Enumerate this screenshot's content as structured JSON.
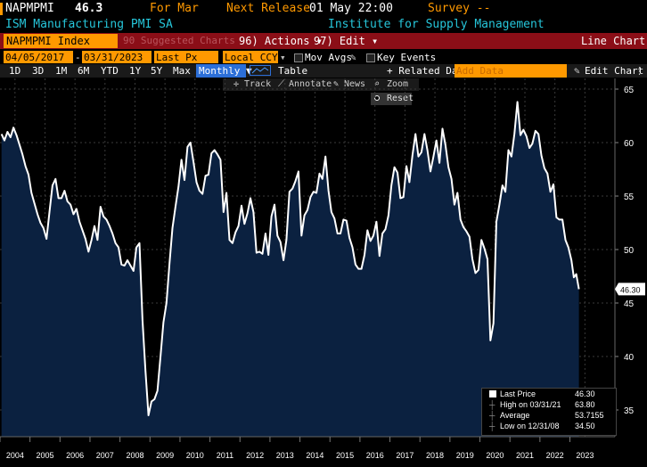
{
  "header": {
    "ticker": "NAPMPMI",
    "value": "46.3",
    "for_label": "For Mar",
    "next_release_label": "Next Release",
    "next_release_value": "01 May 22:00",
    "survey_label": "Survey --",
    "name": "ISM Manufacturing PMI SA",
    "source": "Institute for Supply Management"
  },
  "commandbar": {
    "security": "NAPMPMI Index",
    "suggested": "90 Suggested Charts",
    "actions": "96) Actions ▾",
    "edit": "97) Edit ▾",
    "title": "Line Chart"
  },
  "toolbar": {
    "start_date": "04/05/2017",
    "end_date": "03/31/2023",
    "field": "Last Px",
    "currency": "Local CCY",
    "mov_avgs": "Mov Avgs",
    "key_events": "Key Events"
  },
  "ranges": {
    "items": [
      "1D",
      "3D",
      "1M",
      "6M",
      "YTD",
      "1Y",
      "5Y",
      "Max"
    ],
    "frequency": "Monthly ▼",
    "table": "Table",
    "related": "+ Related Dat",
    "add_data_placeholder": "Add Data",
    "edit_chart": "Edit Chart"
  },
  "tools": {
    "track": "Track",
    "annotate": "Annotate",
    "news": "News",
    "zoom": "Zoom",
    "reset": "Reset"
  },
  "legend": {
    "rows": [
      {
        "label": "Last Price",
        "value": "46.30"
      },
      {
        "label": "High on 03/31/21",
        "value": "63.80"
      },
      {
        "label": "Average",
        "value": "53.7155"
      },
      {
        "label": "Low on 12/31/08",
        "value": "34.50"
      }
    ]
  },
  "last_value_tag": "46.30",
  "colors": {
    "line": "#ffffff",
    "fill": "#0b2140",
    "accent": "#ff9900",
    "bar": "#8b0e17",
    "cyan": "#26c6da"
  },
  "chart_data": {
    "type": "area",
    "x_start_year": 2004,
    "x_ticks": [
      "2004",
      "2005",
      "2006",
      "2007",
      "2008",
      "2009",
      "2010",
      "2011",
      "2012",
      "2013",
      "2014",
      "2015",
      "2016",
      "2017",
      "2018",
      "2019",
      "2020",
      "2021",
      "2022",
      "2023"
    ],
    "y_ticks": [
      35,
      40,
      45,
      50,
      55,
      60,
      65
    ],
    "ylim": [
      32.5,
      66.0
    ],
    "series": [
      {
        "points": [
          [
            2004.0,
            60.8
          ],
          [
            2004.1,
            60.2
          ],
          [
            2004.2,
            61.0
          ],
          [
            2004.3,
            60.5
          ],
          [
            2004.4,
            61.4
          ],
          [
            2004.5,
            60.7
          ],
          [
            2004.6,
            59.8
          ],
          [
            2004.7,
            58.9
          ],
          [
            2004.8,
            57.8
          ],
          [
            2004.9,
            57.0
          ],
          [
            2005.0,
            55.3
          ],
          [
            2005.2,
            53.3
          ],
          [
            2005.3,
            52.5
          ],
          [
            2005.4,
            52.0
          ],
          [
            2005.5,
            51.0
          ],
          [
            2005.6,
            53.5
          ],
          [
            2005.7,
            56.0
          ],
          [
            2005.8,
            56.6
          ],
          [
            2005.9,
            54.8
          ],
          [
            2006.0,
            54.8
          ],
          [
            2006.1,
            55.5
          ],
          [
            2006.2,
            54.5
          ],
          [
            2006.3,
            54.2
          ],
          [
            2006.4,
            53.3
          ],
          [
            2006.5,
            53.8
          ],
          [
            2006.6,
            52.6
          ],
          [
            2006.8,
            51.0
          ],
          [
            2006.9,
            49.8
          ],
          [
            2007.0,
            50.9
          ],
          [
            2007.1,
            52.2
          ],
          [
            2007.2,
            50.9
          ],
          [
            2007.3,
            54.0
          ],
          [
            2007.4,
            53.1
          ],
          [
            2007.5,
            52.8
          ],
          [
            2007.6,
            52.2
          ],
          [
            2007.7,
            51.5
          ],
          [
            2007.8,
            50.6
          ],
          [
            2007.9,
            50.2
          ],
          [
            2008.0,
            48.6
          ],
          [
            2008.1,
            48.5
          ],
          [
            2008.2,
            49.0
          ],
          [
            2008.3,
            48.5
          ],
          [
            2008.4,
            48.0
          ],
          [
            2008.5,
            50.2
          ],
          [
            2008.6,
            50.6
          ],
          [
            2008.7,
            43.4
          ],
          [
            2008.8,
            38.7
          ],
          [
            2008.9,
            34.5
          ],
          [
            2009.0,
            35.8
          ],
          [
            2009.1,
            36.0
          ],
          [
            2009.2,
            36.8
          ],
          [
            2009.3,
            40.0
          ],
          [
            2009.4,
            43.2
          ],
          [
            2009.5,
            45.0
          ],
          [
            2009.6,
            48.7
          ],
          [
            2009.7,
            52.0
          ],
          [
            2009.8,
            54.0
          ],
          [
            2009.9,
            55.9
          ],
          [
            2010.0,
            58.4
          ],
          [
            2010.1,
            56.5
          ],
          [
            2010.2,
            59.6
          ],
          [
            2010.3,
            60.0
          ],
          [
            2010.4,
            58.2
          ],
          [
            2010.5,
            56.3
          ],
          [
            2010.6,
            55.5
          ],
          [
            2010.7,
            55.2
          ],
          [
            2010.8,
            56.9
          ],
          [
            2010.9,
            57.0
          ],
          [
            2011.0,
            59.0
          ],
          [
            2011.1,
            59.3
          ],
          [
            2011.2,
            58.9
          ],
          [
            2011.3,
            58.4
          ],
          [
            2011.4,
            53.5
          ],
          [
            2011.5,
            55.3
          ],
          [
            2011.6,
            50.9
          ],
          [
            2011.7,
            50.6
          ],
          [
            2011.8,
            51.6
          ],
          [
            2011.9,
            52.2
          ],
          [
            2012.0,
            54.1
          ],
          [
            2012.1,
            52.4
          ],
          [
            2012.2,
            53.4
          ],
          [
            2012.3,
            54.8
          ],
          [
            2012.4,
            53.5
          ],
          [
            2012.5,
            49.7
          ],
          [
            2012.6,
            49.8
          ],
          [
            2012.7,
            49.6
          ],
          [
            2012.8,
            51.5
          ],
          [
            2012.9,
            49.5
          ],
          [
            2013.0,
            53.1
          ],
          [
            2013.1,
            54.2
          ],
          [
            2013.2,
            51.3
          ],
          [
            2013.3,
            50.7
          ],
          [
            2013.4,
            49.0
          ],
          [
            2013.5,
            50.9
          ],
          [
            2013.6,
            55.4
          ],
          [
            2013.7,
            55.7
          ],
          [
            2013.8,
            56.4
          ],
          [
            2013.9,
            57.3
          ],
          [
            2014.0,
            51.3
          ],
          [
            2014.1,
            53.2
          ],
          [
            2014.2,
            53.7
          ],
          [
            2014.3,
            54.9
          ],
          [
            2014.4,
            55.4
          ],
          [
            2014.5,
            55.3
          ],
          [
            2014.6,
            57.1
          ],
          [
            2014.7,
            56.6
          ],
          [
            2014.8,
            58.7
          ],
          [
            2014.9,
            55.5
          ],
          [
            2015.0,
            53.5
          ],
          [
            2015.1,
            52.9
          ],
          [
            2015.2,
            51.5
          ],
          [
            2015.3,
            51.5
          ],
          [
            2015.4,
            52.8
          ],
          [
            2015.5,
            52.7
          ],
          [
            2015.6,
            51.1
          ],
          [
            2015.7,
            50.2
          ],
          [
            2015.8,
            48.6
          ],
          [
            2015.9,
            48.2
          ],
          [
            2016.0,
            48.2
          ],
          [
            2016.1,
            49.5
          ],
          [
            2016.2,
            51.8
          ],
          [
            2016.3,
            50.8
          ],
          [
            2016.4,
            51.3
          ],
          [
            2016.5,
            52.6
          ],
          [
            2016.6,
            49.4
          ],
          [
            2016.7,
            51.5
          ],
          [
            2016.8,
            51.9
          ],
          [
            2016.9,
            53.2
          ],
          [
            2017.0,
            56.0
          ],
          [
            2017.1,
            57.7
          ],
          [
            2017.2,
            57.2
          ],
          [
            2017.3,
            54.8
          ],
          [
            2017.4,
            54.9
          ],
          [
            2017.5,
            57.8
          ],
          [
            2017.6,
            56.3
          ],
          [
            2017.7,
            58.8
          ],
          [
            2017.8,
            60.8
          ],
          [
            2017.9,
            58.7
          ],
          [
            2018.0,
            59.1
          ],
          [
            2018.1,
            60.8
          ],
          [
            2018.2,
            59.3
          ],
          [
            2018.3,
            57.3
          ],
          [
            2018.4,
            58.7
          ],
          [
            2018.5,
            60.2
          ],
          [
            2018.6,
            58.1
          ],
          [
            2018.7,
            61.3
          ],
          [
            2018.8,
            59.8
          ],
          [
            2018.9,
            57.7
          ],
          [
            2019.0,
            56.6
          ],
          [
            2019.1,
            54.2
          ],
          [
            2019.2,
            55.3
          ],
          [
            2019.3,
            52.8
          ],
          [
            2019.4,
            52.1
          ],
          [
            2019.5,
            51.7
          ],
          [
            2019.6,
            51.2
          ],
          [
            2019.7,
            49.1
          ],
          [
            2019.8,
            47.8
          ],
          [
            2019.9,
            48.1
          ],
          [
            2020.0,
            50.9
          ],
          [
            2020.1,
            50.1
          ],
          [
            2020.2,
            49.1
          ],
          [
            2020.3,
            41.5
          ],
          [
            2020.4,
            43.1
          ],
          [
            2020.5,
            52.6
          ],
          [
            2020.6,
            54.2
          ],
          [
            2020.7,
            56.0
          ],
          [
            2020.8,
            55.4
          ],
          [
            2020.9,
            59.3
          ],
          [
            2021.0,
            58.7
          ],
          [
            2021.1,
            60.8
          ],
          [
            2021.2,
            63.8
          ],
          [
            2021.3,
            60.7
          ],
          [
            2021.4,
            61.2
          ],
          [
            2021.5,
            60.6
          ],
          [
            2021.6,
            59.5
          ],
          [
            2021.7,
            59.9
          ],
          [
            2021.8,
            61.1
          ],
          [
            2021.9,
            60.8
          ],
          [
            2022.0,
            58.8
          ],
          [
            2022.1,
            57.6
          ],
          [
            2022.2,
            57.1
          ],
          [
            2022.3,
            55.4
          ],
          [
            2022.4,
            56.1
          ],
          [
            2022.5,
            53.0
          ],
          [
            2022.6,
            52.8
          ],
          [
            2022.7,
            52.8
          ],
          [
            2022.8,
            50.9
          ],
          [
            2022.9,
            50.2
          ],
          [
            2023.0,
            49.0
          ],
          [
            2023.08,
            47.4
          ],
          [
            2023.16,
            47.7
          ],
          [
            2023.25,
            46.3
          ]
        ]
      }
    ]
  }
}
